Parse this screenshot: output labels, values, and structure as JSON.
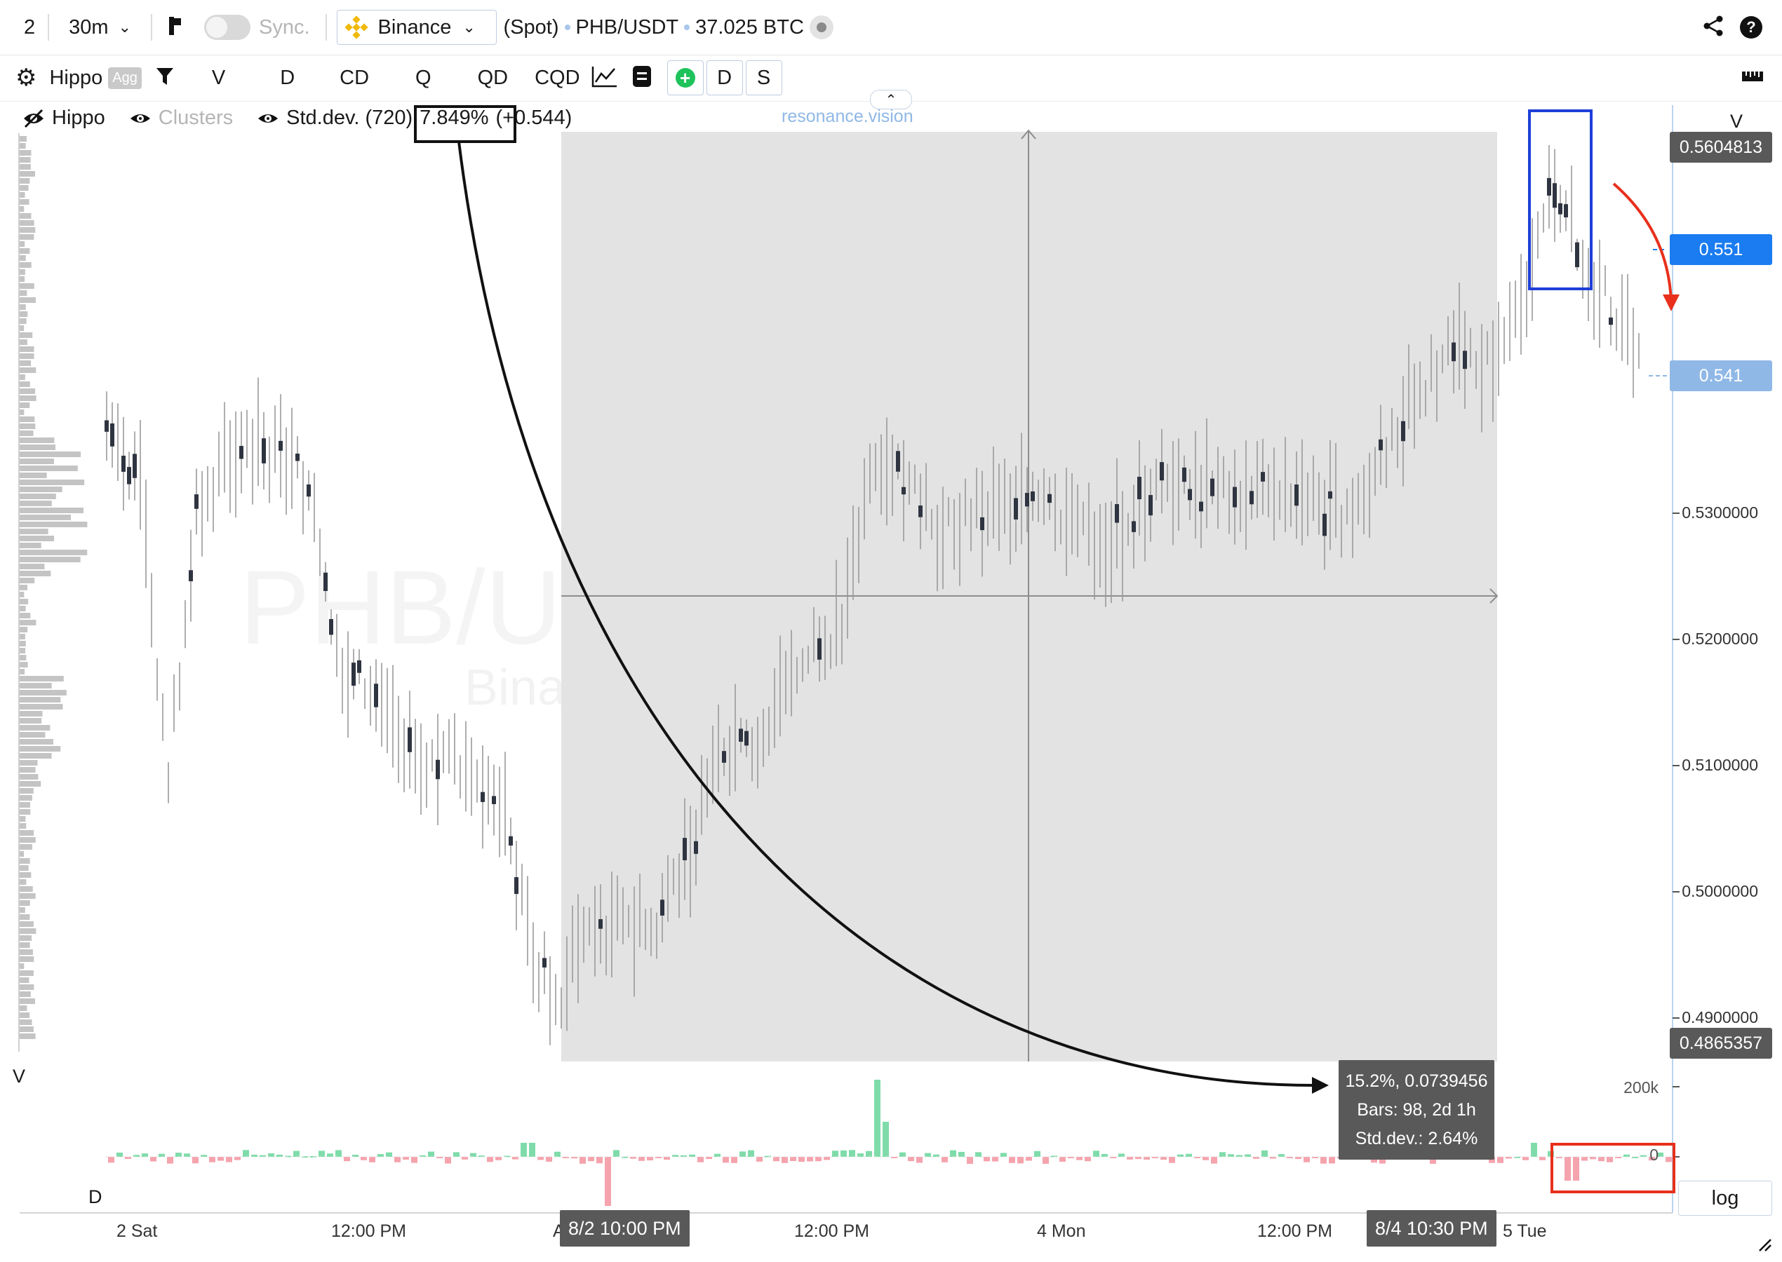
{
  "toolbar": {
    "layout_number": "2",
    "timeframe": "30m",
    "sync_label": "Sync.",
    "exchange": "Binance",
    "market_type": "(Spot)",
    "pair": "PHB/USDT",
    "volume": "37.025 BTC"
  },
  "toolbar2": {
    "indicator_name": "Hippo",
    "agg_badge": "Agg",
    "buttons": [
      "V",
      "D",
      "CD",
      "Q",
      "QD",
      "CQD"
    ],
    "toggle_buttons": [
      "D",
      "S"
    ]
  },
  "legend": {
    "hippo": "Hippo",
    "clusters": "Clusters",
    "std_dev_prefix": "Std.dev. (72",
    "std_dev_hidden": "0)",
    "std_dev_value": "7.849%",
    "std_dev_suffix": "(+0.544)",
    "site": "resonance.vision"
  },
  "watermark": {
    "title": "PHB/USDT, 30m",
    "subtitle": "Binance (Spot)"
  },
  "price_axis": {
    "header": "V",
    "labels": [
      "0.5300000",
      "0.5200000",
      "0.5100000",
      "0.5000000",
      "0.4900000"
    ],
    "badges": [
      {
        "text": "0.5604813",
        "color": "#595959"
      },
      {
        "text": "0.551",
        "color": "#1a7cf0"
      },
      {
        "text": "0.541",
        "color": "#8fb8e6"
      },
      {
        "text": "0.4865357",
        "color": "#595959"
      }
    ]
  },
  "volume_panel": {
    "label_v": "V",
    "label_d": "D",
    "scale_200k": "200k",
    "scale_zero": "0"
  },
  "time_axis": {
    "labels": [
      "2 Sat",
      "12:00 PM",
      "A",
      "12:00 PM",
      "4 Mon",
      "12:00 PM",
      "5 Tue"
    ],
    "badge_start": "8/2 10:00 PM",
    "badge_end": "8/4 10:30 PM"
  },
  "measurement": {
    "line1": "15.2%, 0.0739456",
    "line2": "Bars: 98, 2d 1h",
    "line3": "Std.dev.: 2.64%"
  },
  "log_button": "log",
  "colors": {
    "accent_blue": "#1a7cf0",
    "annotation_red": "#e8301c",
    "bull": "#7fdcaa",
    "bear": "#f5a3ad"
  }
}
